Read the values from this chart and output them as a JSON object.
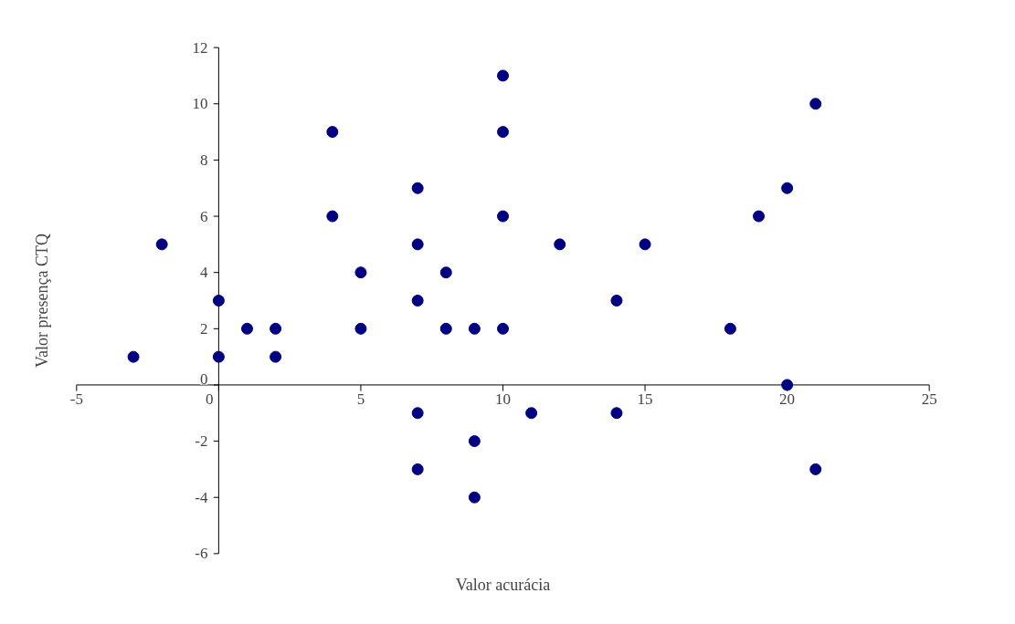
{
  "chart_data": {
    "type": "scatter",
    "xlabel": "Valor acurácia",
    "ylabel": "Valor presença CTQ",
    "x": [
      -3,
      -2,
      0,
      0,
      1,
      2,
      2,
      4,
      4,
      5,
      5,
      7,
      7,
      7,
      7,
      7,
      8,
      8,
      9,
      9,
      9,
      10,
      10,
      10,
      10,
      11,
      12,
      14,
      14,
      15,
      18,
      19,
      20,
      20,
      21,
      21
    ],
    "series": [
      {
        "color": "#000080",
        "values": [
          1,
          5,
          3,
          1,
          2,
          2,
          1,
          9,
          6,
          4,
          2,
          7,
          5,
          3,
          -1,
          -3,
          4,
          2,
          2,
          -2,
          -4,
          11,
          9,
          6,
          2,
          -1,
          5,
          3,
          -1,
          5,
          2,
          6,
          7,
          0,
          10,
          -3
        ]
      }
    ],
    "xlim": [
      -5,
      25
    ],
    "ylim": [
      -6,
      12
    ],
    "xticks": [
      -5,
      0,
      5,
      10,
      15,
      20,
      25
    ],
    "yticks": [
      -6,
      -4,
      -2,
      0,
      2,
      4,
      6,
      8,
      10,
      12
    ],
    "grid": false,
    "marker": "circle"
  }
}
